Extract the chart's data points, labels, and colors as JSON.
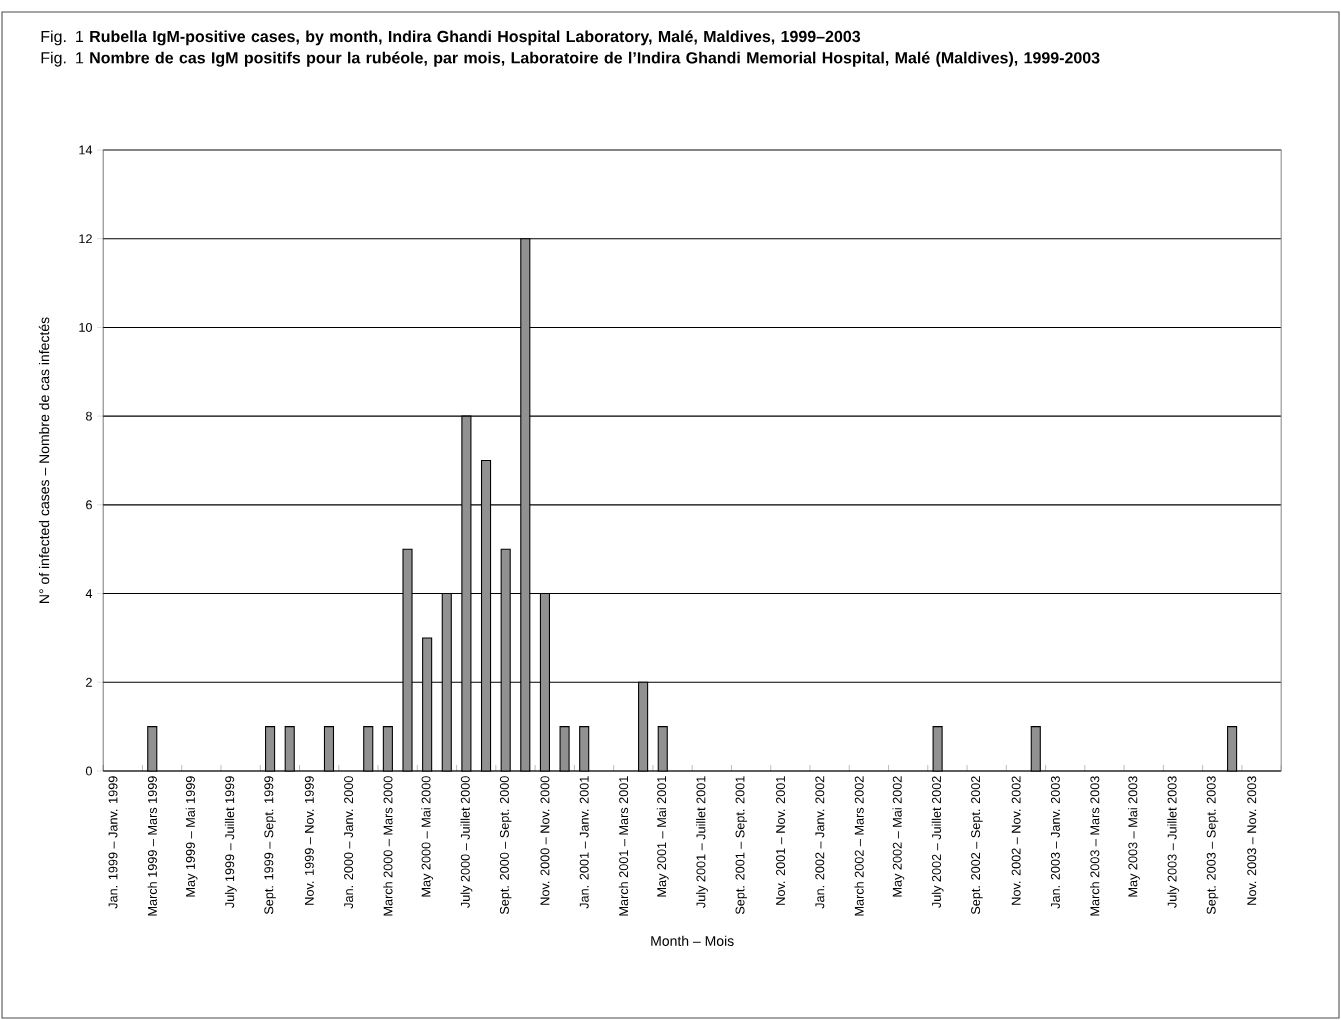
{
  "chart_data": {
    "type": "bar",
    "title": "Fig. 1 **Rubella IgM-positive cases, by month, Indira Ghandi Hospital Laboratory, Malé, Maldives, 1999–2003**",
    "subtitle": "Fig. 1 **Nombre de cas IgM positifs pour la rubéole, par mois, Laboratoire de l’Indira Ghandi Memorial Hospital, Malé (Maldives), 1999-2003**",
    "xlabel": "Month – Mois",
    "ylabel": "N° of infected cases – Nombre de cas infectés",
    "categories": [
      "Jan. 1999 – Janv. 1999",
      null,
      "March 1999 – Mars 1999",
      null,
      "May 1999 – Mai 1999",
      null,
      "July 1999 – Juillet 1999",
      null,
      "Sept. 1999 – Sept. 1999",
      null,
      "Nov. 1999 – Nov. 1999",
      null,
      "Jan. 2000 – Janv. 2000",
      null,
      "March 2000 – Mars 2000",
      null,
      "May 2000 – Mai 2000",
      null,
      "July 2000 – Juillet 2000",
      null,
      "Sept. 2000 – Sept. 2000",
      null,
      "Nov. 2000 – Nov. 2000",
      null,
      "Jan. 2001 – Janv. 2001",
      null,
      "March 2001 – Mars 2001",
      null,
      "May 2001 – Mai 2001",
      null,
      "July 2001 – Juillet 2001",
      null,
      "Sept. 2001 – Sept. 2001",
      null,
      "Nov. 2001 – Nov. 2001",
      null,
      "Jan. 2002 – Janv. 2002",
      null,
      "March 2002 – Mars 2002",
      null,
      "May 2002 – Mai 2002",
      null,
      "July 2002 – Juillet 2002",
      null,
      "Sept. 2002 – Sept. 2002",
      null,
      "Nov. 2002 – Nov. 2002",
      null,
      "Jan. 2003 – Janv. 2003",
      null,
      "March 2003 – Mars 2003",
      null,
      "May 2003 – Mai 2003",
      null,
      "July 2003 – Juillet 2003",
      null,
      "Sept. 2003 – Sept. 2003",
      null,
      "Nov. 2003 – Nov. 2003",
      null
    ],
    "values": [
      0,
      0,
      1,
      0,
      0,
      0,
      0,
      0,
      1,
      1,
      0,
      1,
      0,
      1,
      1,
      5,
      3,
      4,
      8,
      7,
      5,
      12,
      4,
      1,
      1,
      0,
      0,
      2,
      1,
      0,
      0,
      0,
      0,
      0,
      0,
      0,
      0,
      0,
      0,
      0,
      0,
      0,
      1,
      0,
      0,
      0,
      0,
      1,
      0,
      0,
      0,
      0,
      0,
      0,
      0,
      0,
      0,
      1,
      0,
      0
    ],
    "color": "#919191",
    "ylim": [
      0,
      14
    ],
    "yticks": [
      0,
      2,
      4,
      6,
      8,
      10,
      12,
      14
    ],
    "grid": "y"
  }
}
